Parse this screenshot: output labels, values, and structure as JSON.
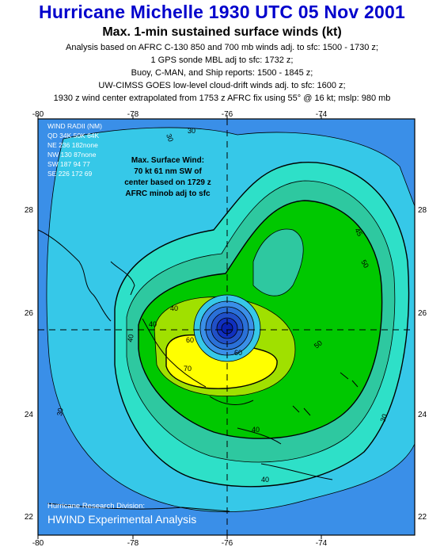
{
  "header": {
    "title": "Hurricane Michelle 1930 UTC 05 Nov 2001",
    "subtitle": "Max. 1-min sustained surface winds (kt)",
    "lines": [
      "Analysis based on AFRC C-130 850 and 700 mb winds adj. to sfc: 1500 - 1730 z;",
      "1 GPS sonde MBL adj to sfc: 1732 z;",
      "Buoy, C-MAN, and Ship reports: 1500 - 1845 z;",
      "UW-CIMSS GOES low-level cloud-drift winds adj. to sfc: 1600 z;",
      "1930 z wind center extrapolated from 1753 z AFRC fix using 55° @ 16 kt; mslp: 980 mb"
    ]
  },
  "axes": {
    "lon_ticks": [
      "-80",
      "-78",
      "-76",
      "-74"
    ],
    "lat_ticks": [
      "28",
      "26",
      "24",
      "22"
    ]
  },
  "wind_radii": {
    "title": "WIND RADII (NM)",
    "header": "QD 34K 50K 64K",
    "rows": [
      "NE 236 182none",
      "NW 130  87none",
      "SW 187  94   77",
      "SE 226 172   69"
    ]
  },
  "max_wind": {
    "lines": [
      "Max. Surface Wind:",
      "70 kt 61 nm SW of",
      "center based on  1729 z",
      "AFRC minob adj to sfc"
    ]
  },
  "footer": {
    "division": "Hurricane Research Division:",
    "product": "HWIND Experimental Analysis"
  },
  "contour_labels": [
    "30",
    "30",
    "40",
    "40",
    "45",
    "50",
    "50",
    "60",
    "40",
    "30",
    "30",
    "40",
    "60",
    "70",
    "40"
  ],
  "colors": {
    "title": "#0000cc",
    "wind_25": "#3a8fe8",
    "wind_30": "#36c8e8",
    "wind_40": "#2ee0c8",
    "wind_50": "#00c800",
    "wind_60": "#a0e000",
    "wind_70": "#ffff00",
    "center": "#1030c0"
  }
}
